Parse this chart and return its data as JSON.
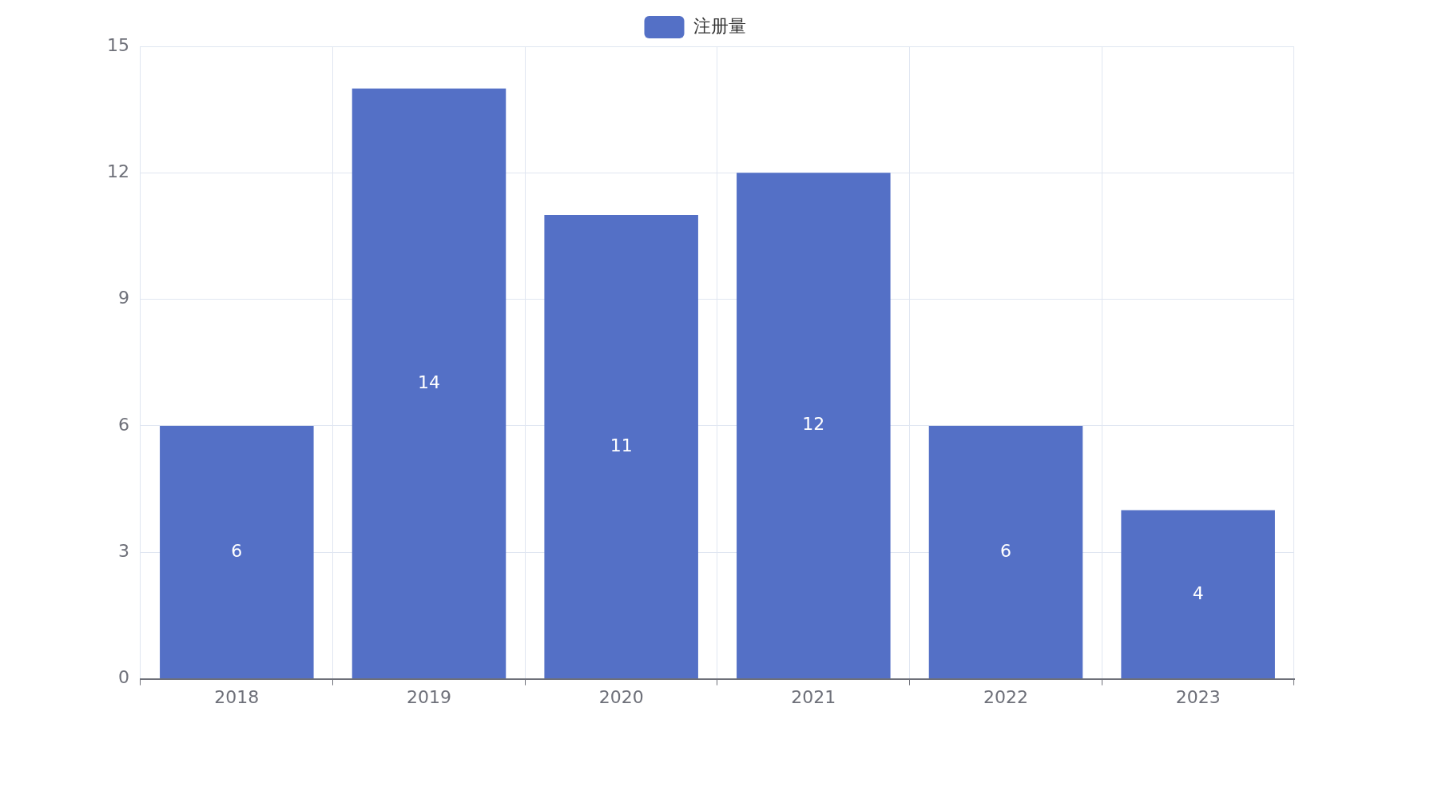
{
  "chart_data": {
    "type": "bar",
    "categories": [
      "2018",
      "2019",
      "2020",
      "2021",
      "2022",
      "2023"
    ],
    "series": [
      {
        "name": "注册量",
        "color": "#5470c6",
        "values": [
          6,
          14,
          11,
          12,
          6,
          4
        ]
      }
    ],
    "ylim": [
      0,
      15
    ],
    "yticks": [
      0,
      3,
      6,
      9,
      12,
      15
    ],
    "grid": true,
    "legend": "top",
    "data_labels": true
  }
}
